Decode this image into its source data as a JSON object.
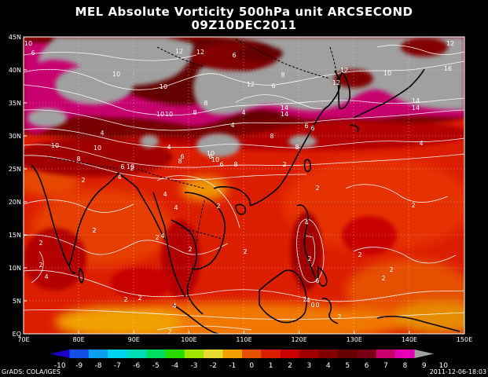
{
  "title": {
    "line1": "MEL Absolute Vorticity 500hPa unit ARCSECOND",
    "line2": "09Z10DEC2011"
  },
  "axes": {
    "lat_labels": [
      "45N",
      "40N",
      "35N",
      "30N",
      "25N",
      "20N",
      "15N",
      "10N",
      "5N",
      "EQ"
    ],
    "lon_labels": [
      "70E",
      "80E",
      "90E",
      "100E",
      "110E",
      "120E",
      "130E",
      "140E",
      "150E"
    ]
  },
  "colorbar": {
    "labels": [
      "-10",
      "-9",
      "-8",
      "-7",
      "-6",
      "-5",
      "-4",
      "-3",
      "-2",
      "-1",
      "0",
      "1",
      "2",
      "3",
      "4",
      "5",
      "6",
      "7",
      "8",
      "9",
      "10"
    ],
    "colors": [
      "#1c00c8",
      "#1450e6",
      "#0aa0f0",
      "#00d2f0",
      "#00dcb4",
      "#00dc64",
      "#28dc00",
      "#a0e600",
      "#e6dc32",
      "#f0a000",
      "#e65000",
      "#dc1e00",
      "#c80000",
      "#a00000",
      "#820000",
      "#640000",
      "#780014",
      "#c8006e",
      "#e600b4",
      "#a0a0a0"
    ]
  },
  "footer": {
    "left": "GrADS: COLA/IGES",
    "right": "2011-12-06-18:03"
  },
  "contour_labels": [
    "10",
    "6",
    "12",
    "6",
    "10",
    "12",
    "10",
    "12",
    "16",
    "8",
    "10",
    "10",
    "6",
    "8",
    "6",
    "8",
    "10",
    "10",
    "14",
    "14",
    "12",
    "8",
    "4",
    "10",
    "14",
    "14",
    "12",
    "10",
    "4",
    "4",
    "8",
    "6",
    "4",
    "10",
    "6",
    "10",
    "4",
    "12",
    "8",
    "8",
    "6",
    "6",
    "4",
    "6",
    "2",
    "8",
    "4",
    "2",
    "2",
    "2",
    "4",
    "2",
    "2",
    "2",
    "2",
    "2",
    "2",
    "4",
    "2",
    "2",
    "2",
    "4",
    "2",
    "2",
    "4",
    "2",
    "2",
    "6",
    "4",
    "2",
    "2",
    "2",
    "4",
    "2",
    "0",
    "2",
    "0"
  ]
}
